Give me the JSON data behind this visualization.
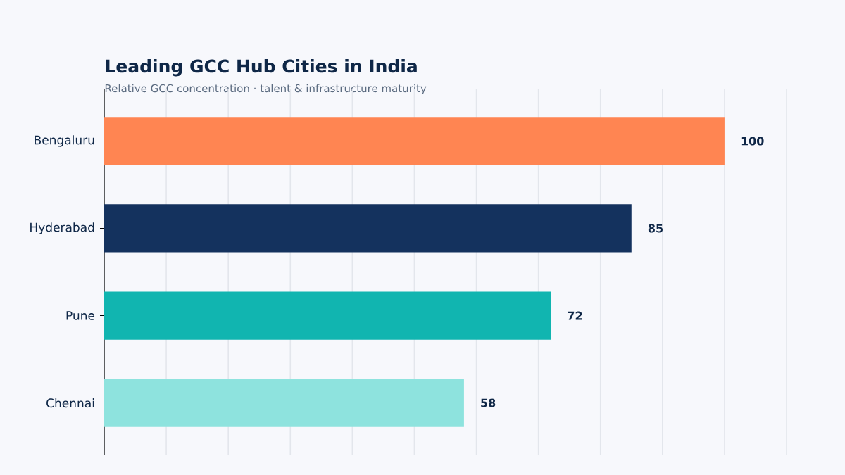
{
  "chart_data": {
    "type": "bar",
    "orientation": "horizontal",
    "title": "Leading GCC Hub Cities in India",
    "subtitle": "Relative GCC concentration · talent & infrastructure maturity",
    "categories": [
      "Bengaluru",
      "Hyderabad",
      "Pune",
      "Chennai"
    ],
    "values": [
      100,
      85,
      72,
      58
    ],
    "colors": [
      "#ff8552",
      "#14325e",
      "#11b5b0",
      "#8ee3de"
    ],
    "tick_labels": "y",
    "grid": "x",
    "data_labels": true
  }
}
